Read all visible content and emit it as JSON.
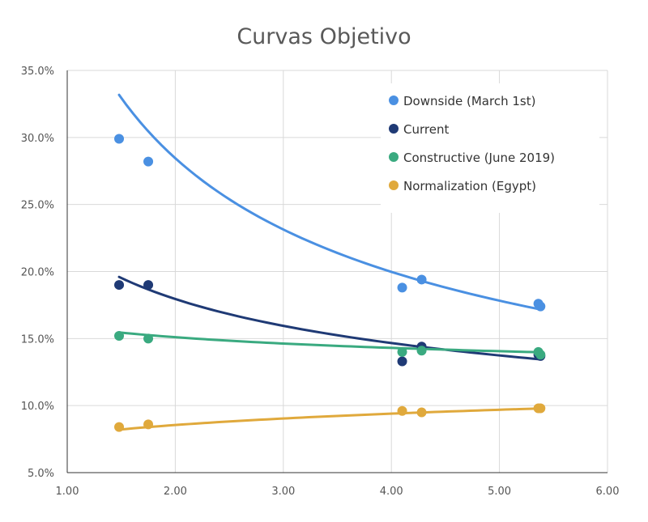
{
  "chart_data": {
    "type": "scatter",
    "title": "Curvas Objetivo",
    "xlabel": "",
    "ylabel": "",
    "xlim": [
      1.0,
      6.0
    ],
    "ylim": [
      0.05,
      0.35
    ],
    "x_ticks": [
      1.0,
      2.0,
      3.0,
      4.0,
      5.0,
      6.0
    ],
    "x_tick_labels": [
      "1.00",
      "2.00",
      "3.00",
      "4.00",
      "5.00",
      "6.00"
    ],
    "y_ticks": [
      0.05,
      0.1,
      0.15,
      0.2,
      0.25,
      0.3,
      0.35
    ],
    "y_tick_labels": [
      "5.0%",
      "10.0%",
      "15.0%",
      "20.0%",
      "25.0%",
      "30.0%",
      "35.0%"
    ],
    "grid": true,
    "legend_position": "top-right",
    "trendline": "power",
    "series": [
      {
        "name": "Downside (March 1st)",
        "color": "#4a90e2",
        "points": [
          {
            "x": 1.48,
            "y": 0.299
          },
          {
            "x": 1.75,
            "y": 0.282
          },
          {
            "x": 4.1,
            "y": 0.188
          },
          {
            "x": 4.28,
            "y": 0.194
          },
          {
            "x": 5.36,
            "y": 0.176
          },
          {
            "x": 5.38,
            "y": 0.174
          }
        ],
        "trend": {
          "a": 0.4052,
          "b": -0.5102
        }
      },
      {
        "name": "Current",
        "color": "#1f3a75",
        "points": [
          {
            "x": 1.48,
            "y": 0.19
          },
          {
            "x": 1.75,
            "y": 0.19
          },
          {
            "x": 4.1,
            "y": 0.133
          },
          {
            "x": 4.28,
            "y": 0.144
          },
          {
            "x": 5.36,
            "y": 0.138
          },
          {
            "x": 5.38,
            "y": 0.137
          }
        ],
        "trend": {
          "a": 0.2197,
          "b": -0.2916
        }
      },
      {
        "name": "Constructive (June 2019)",
        "color": "#3aaa80",
        "points": [
          {
            "x": 1.48,
            "y": 0.152
          },
          {
            "x": 1.75,
            "y": 0.15
          },
          {
            "x": 4.1,
            "y": 0.14
          },
          {
            "x": 4.28,
            "y": 0.141
          },
          {
            "x": 5.36,
            "y": 0.14
          },
          {
            "x": 5.38,
            "y": 0.138
          }
        ],
        "trend": {
          "a": 0.1594,
          "b": -0.0781
        }
      },
      {
        "name": "Normalization (Egypt)",
        "color": "#e0a93c",
        "points": [
          {
            "x": 1.48,
            "y": 0.084
          },
          {
            "x": 1.75,
            "y": 0.086
          },
          {
            "x": 4.1,
            "y": 0.096
          },
          {
            "x": 4.28,
            "y": 0.095
          },
          {
            "x": 5.36,
            "y": 0.098
          },
          {
            "x": 5.38,
            "y": 0.098
          }
        ],
        "trend": {
          "a": 0.0778,
          "b": 0.1364
        }
      }
    ]
  }
}
